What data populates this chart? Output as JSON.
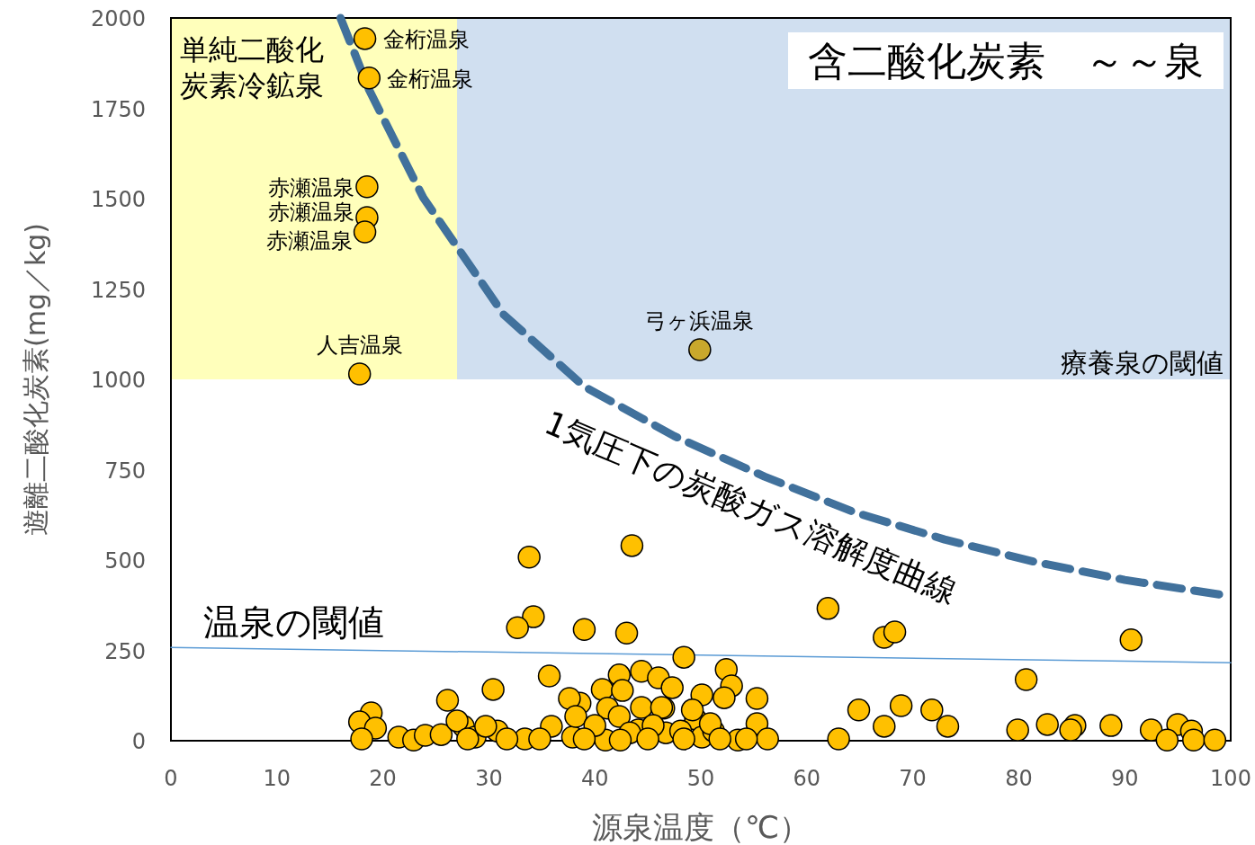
{
  "chart_data": {
    "type": "scatter",
    "xlabel": "源泉温度（℃）",
    "ylabel": "遊離二酸化炭素(mg／kg)",
    "xlim": [
      0,
      100
    ],
    "xticks": [
      0,
      10,
      20,
      30,
      40,
      50,
      60,
      70,
      80,
      90,
      100
    ],
    "ylim": [
      0,
      2000
    ],
    "yticks": [
      0,
      250,
      500,
      750,
      1000,
      1250,
      1500,
      1750,
      2000
    ],
    "grid": false,
    "marker": "circle",
    "series": [
      {
        "type": "scatter",
        "color": "#ffc000",
        "x": [
          18.3,
          18.7,
          18.5,
          18.5,
          18.3,
          17.8,
          33.8,
          43.5,
          34.2,
          32.7,
          39.0,
          43.0,
          48.4,
          62.0,
          67.3,
          68.3,
          90.6,
          35.7,
          26.1,
          30.4,
          80.7,
          68.9,
          64.9,
          71.8,
          73.3,
          67.3,
          63.0,
          79.9,
          82.7,
          85.3,
          88.7,
          92.5,
          95.0,
          94.0,
          96.3,
          96.5,
          98.5,
          84.9,
          42.3,
          44.4,
          46.0,
          52.4,
          52.9,
          55.3,
          55.3,
          52.2,
          50.1,
          40.7,
          42.6,
          38.6,
          37.6,
          41.2,
          46.5,
          47.3,
          44.4,
          49.5,
          44.1,
          46.7,
          35.9,
          37.9,
          41.0,
          33.4,
          30.8,
          27.6,
          28.7,
          18.9,
          17.8,
          19.3,
          18.0,
          21.5,
          22.9,
          24.0,
          25.5,
          50.1,
          53.5,
          56.3,
          51.2,
          48.1,
          29.7,
          27.0,
          38.2,
          46.3,
          42.3,
          40.0,
          49.2,
          50.9,
          43.3,
          45.5,
          34.8,
          31.7,
          28.0,
          48.4,
          51.8,
          54.3,
          39.0,
          45.0,
          42.4
        ],
        "values": [
          1943,
          1834,
          1533,
          1448,
          1408,
          1015,
          508,
          540,
          343,
          313,
          308,
          298,
          231,
          366,
          286,
          301,
          279,
          179,
          112,
          142,
          169,
          97,
          85,
          85,
          40,
          40,
          5,
          30,
          45,
          42,
          42,
          30,
          45,
          2,
          27,
          2,
          2,
          30,
          182,
          192,
          174,
          197,
          152,
          117,
          47,
          119,
          127,
          142,
          139,
          104,
          117,
          90,
          90,
          147,
          92,
          60,
          30,
          22,
          40,
          10,
          2,
          5,
          27,
          40,
          10,
          77,
          52,
          35,
          5,
          10,
          2,
          15,
          17,
          10,
          2,
          5,
          27,
          27,
          40,
          55,
          67,
          92,
          67,
          42,
          85,
          47,
          22,
          42,
          5,
          5,
          5,
          5,
          5,
          5,
          5,
          5,
          2
        ]
      },
      {
        "type": "scatter",
        "color": "#c9a82c",
        "x": [
          49.9
        ],
        "values": [
          1082
        ]
      },
      {
        "type": "line",
        "name": "1気圧下の炭酸ガス溶解度曲線",
        "color": "#41719c",
        "line_style": "dashed",
        "marker": "none",
        "x": [
          16.0,
          18.7,
          23.8,
          31.4,
          39.0,
          47.5,
          56.0,
          64.5,
          73.0,
          81.5,
          90.0,
          100
        ],
        "values": [
          2000,
          1801,
          1503,
          1179,
          980,
          843,
          731,
          632,
          557,
          495,
          445,
          400
        ]
      },
      {
        "type": "line",
        "name": "温泉の閾値",
        "color": "#5b9bd5",
        "line_style": "solid",
        "marker": "none",
        "x": [
          0,
          100
        ],
        "values": [
          258,
          216
        ]
      }
    ],
    "bands": [
      {
        "axis": "y",
        "from": 1000,
        "to": 2000,
        "label": "療養泉の閾値",
        "color": "#d0dff0"
      },
      {
        "axis": "x",
        "from": 0,
        "to": 27,
        "label": "単純二酸化炭素冷鉱泉",
        "color": "#ffffbb"
      }
    ],
    "annotations": [
      "含二酸化炭素　～～泉",
      {
        "text": "金桁温泉",
        "x": 18.3,
        "y": 1943
      },
      {
        "text": "金桁温泉",
        "x": 18.7,
        "y": 1834
      },
      {
        "text": "赤瀬温泉",
        "x": 18.5,
        "y": 1533
      },
      {
        "text": "赤瀬温泉",
        "x": 18.5,
        "y": 1448
      },
      {
        "text": "赤瀬温泉",
        "x": 18.3,
        "y": 1408
      },
      {
        "text": "人吉温泉",
        "x": 17.8,
        "y": 1015
      },
      {
        "text": "弓ヶ浜温泉",
        "x": 49.9,
        "y": 1082
      }
    ]
  }
}
